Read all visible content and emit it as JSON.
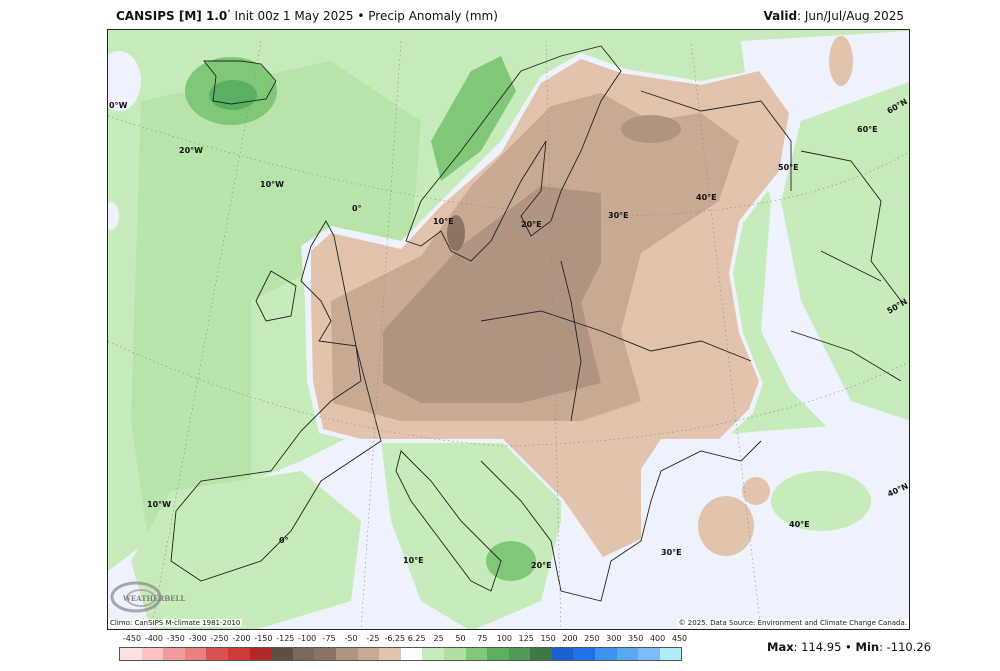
{
  "header": {
    "model": "CANSIPS [M] 1.0",
    "degree": "°",
    "init": "Init 00z 1 May 2025",
    "separator": "•",
    "field": "Precip Anomaly (mm)",
    "valid_label": "Valid",
    "valid_value": ": Jun/Jul/Aug 2025"
  },
  "map": {
    "background_color": "#eef2fc",
    "grid_labels": [
      "0°W",
      "20°W",
      "10°W",
      "0°",
      "10°E",
      "20°E",
      "30°E",
      "40°E",
      "50°E",
      "60°E",
      "60°N",
      "50°N",
      "40°N",
      "10°W",
      "0°",
      "10°E",
      "20°E",
      "30°E",
      "40°E"
    ],
    "logo_text": "WEATHERBELL"
  },
  "credits": {
    "climo": "Climo: CanSIPS M-climate 1981-2010",
    "source": "© 2025. Data Source: Environment and Climate Change Canada."
  },
  "legend": {
    "labels": [
      "-450",
      "-400",
      "-350",
      "-300",
      "-250",
      "-200",
      "-150",
      "-125",
      "-100",
      "-75",
      "-50",
      "-25",
      "-6.25",
      "6.25",
      "25",
      "50",
      "75",
      "100",
      "125",
      "150",
      "200",
      "250",
      "300",
      "350",
      "400",
      "450"
    ],
    "colors": [
      "#fde0e0",
      "#fcc2c2",
      "#f49c9c",
      "#ea8080",
      "#dc5252",
      "#cc3a3a",
      "#b42828",
      "#5e5045",
      "#7a6858",
      "#8c7464",
      "#b09482",
      "#c8aa94",
      "#e2c4ae",
      "#ffffff",
      "#c8ebbb",
      "#b0e0a0",
      "#80c878",
      "#5ab060",
      "#4e9a56",
      "#3e7844",
      "#1a60d0",
      "#2070e8",
      "#3c94f0",
      "#58a8f4",
      "#78bcf8",
      "#b0ecf8"
    ]
  },
  "stats": {
    "max_label": "Max",
    "max_value": ": 114.95",
    "separator": " • ",
    "min_label": "Min",
    "min_value": ": -110.26"
  }
}
